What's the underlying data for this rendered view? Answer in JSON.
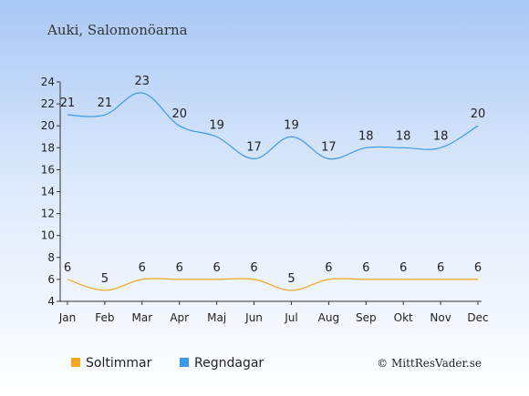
{
  "location": "Auki, Salomonöarna",
  "credit": "© MittResVader.se",
  "chart_data": {
    "type": "line",
    "categories": [
      "Jan",
      "Feb",
      "Mar",
      "Apr",
      "Maj",
      "Jun",
      "Jul",
      "Aug",
      "Sep",
      "Okt",
      "Nov",
      "Dec"
    ],
    "ylim": [
      4,
      24
    ],
    "yticks": [
      4,
      6,
      8,
      10,
      12,
      14,
      16,
      18,
      20,
      22,
      24
    ],
    "grid": false,
    "legend_position": "bottom-left",
    "series": [
      {
        "name": "Soltimmar",
        "color": "#f5a623",
        "values": [
          6,
          5,
          6,
          6,
          6,
          6,
          5,
          6,
          6,
          6,
          6,
          6
        ]
      },
      {
        "name": "Regndagar",
        "color": "#3a9ae8",
        "values": [
          21,
          21,
          23,
          20,
          19,
          17,
          19,
          17,
          18,
          18,
          18,
          20
        ]
      }
    ]
  }
}
